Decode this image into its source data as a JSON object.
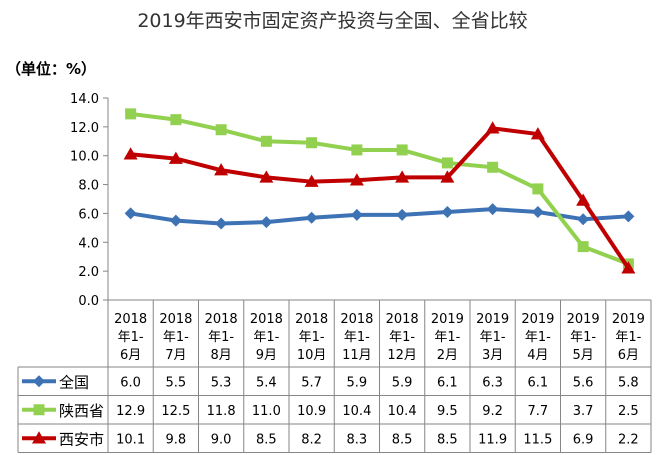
{
  "chart_data": {
    "type": "line",
    "title": "2019年西安市固定资产投资与全国、全省比较",
    "unit_label": "（单位：%）",
    "ylim": [
      0,
      14
    ],
    "ytick_step": 2,
    "yticks": [
      "0.0",
      "2.0",
      "4.0",
      "6.0",
      "8.0",
      "10.0",
      "12.0",
      "14.0"
    ],
    "grid": false,
    "legend": "data-table-left",
    "categories": [
      [
        "2018",
        "年1-",
        "6月"
      ],
      [
        "2018",
        "年1-",
        "7月"
      ],
      [
        "2018",
        "年1-",
        "8月"
      ],
      [
        "2018",
        "年1-",
        "9月"
      ],
      [
        "2018",
        "年1-",
        "10月"
      ],
      [
        "2018",
        "年1-",
        "11月"
      ],
      [
        "2018",
        "年1-",
        "12月"
      ],
      [
        "2019",
        "年1-",
        "2月"
      ],
      [
        "2019",
        "年1-",
        "3月"
      ],
      [
        "2019",
        "年1-",
        "4月"
      ],
      [
        "2019",
        "年1-",
        "5月"
      ],
      [
        "2019",
        "年1-",
        "6月"
      ]
    ],
    "series": [
      {
        "name": "全国",
        "color": "#3d72b4",
        "marker": "diamond",
        "values": [
          6.0,
          5.5,
          5.3,
          5.4,
          5.7,
          5.9,
          5.9,
          6.1,
          6.3,
          6.1,
          5.6,
          5.8
        ],
        "labels": [
          "6.0",
          "5.5",
          "5.3",
          "5.4",
          "5.7",
          "5.9",
          "5.9",
          "6.1",
          "6.3",
          "6.1",
          "5.6",
          "5.8"
        ]
      },
      {
        "name": "陕西省",
        "color": "#92d050",
        "marker": "square",
        "values": [
          12.9,
          12.5,
          11.8,
          11.0,
          10.9,
          10.4,
          10.4,
          9.5,
          9.2,
          7.7,
          3.7,
          2.5
        ],
        "labels": [
          "12.9",
          "12.5",
          "11.8",
          "11.0",
          "10.9",
          "10.4",
          "10.4",
          "9.5",
          "9.2",
          "7.7",
          "3.7",
          "2.5"
        ]
      },
      {
        "name": "西安市",
        "color": "#c00000",
        "marker": "triangle",
        "values": [
          10.1,
          9.8,
          9.0,
          8.5,
          8.2,
          8.3,
          8.5,
          8.5,
          11.9,
          11.5,
          6.9,
          2.2
        ],
        "labels": [
          "10.1",
          "9.8",
          "9.0",
          "8.5",
          "8.2",
          "8.3",
          "8.5",
          "8.5",
          "11.9",
          "11.5",
          "6.9",
          "2.2"
        ]
      }
    ]
  }
}
